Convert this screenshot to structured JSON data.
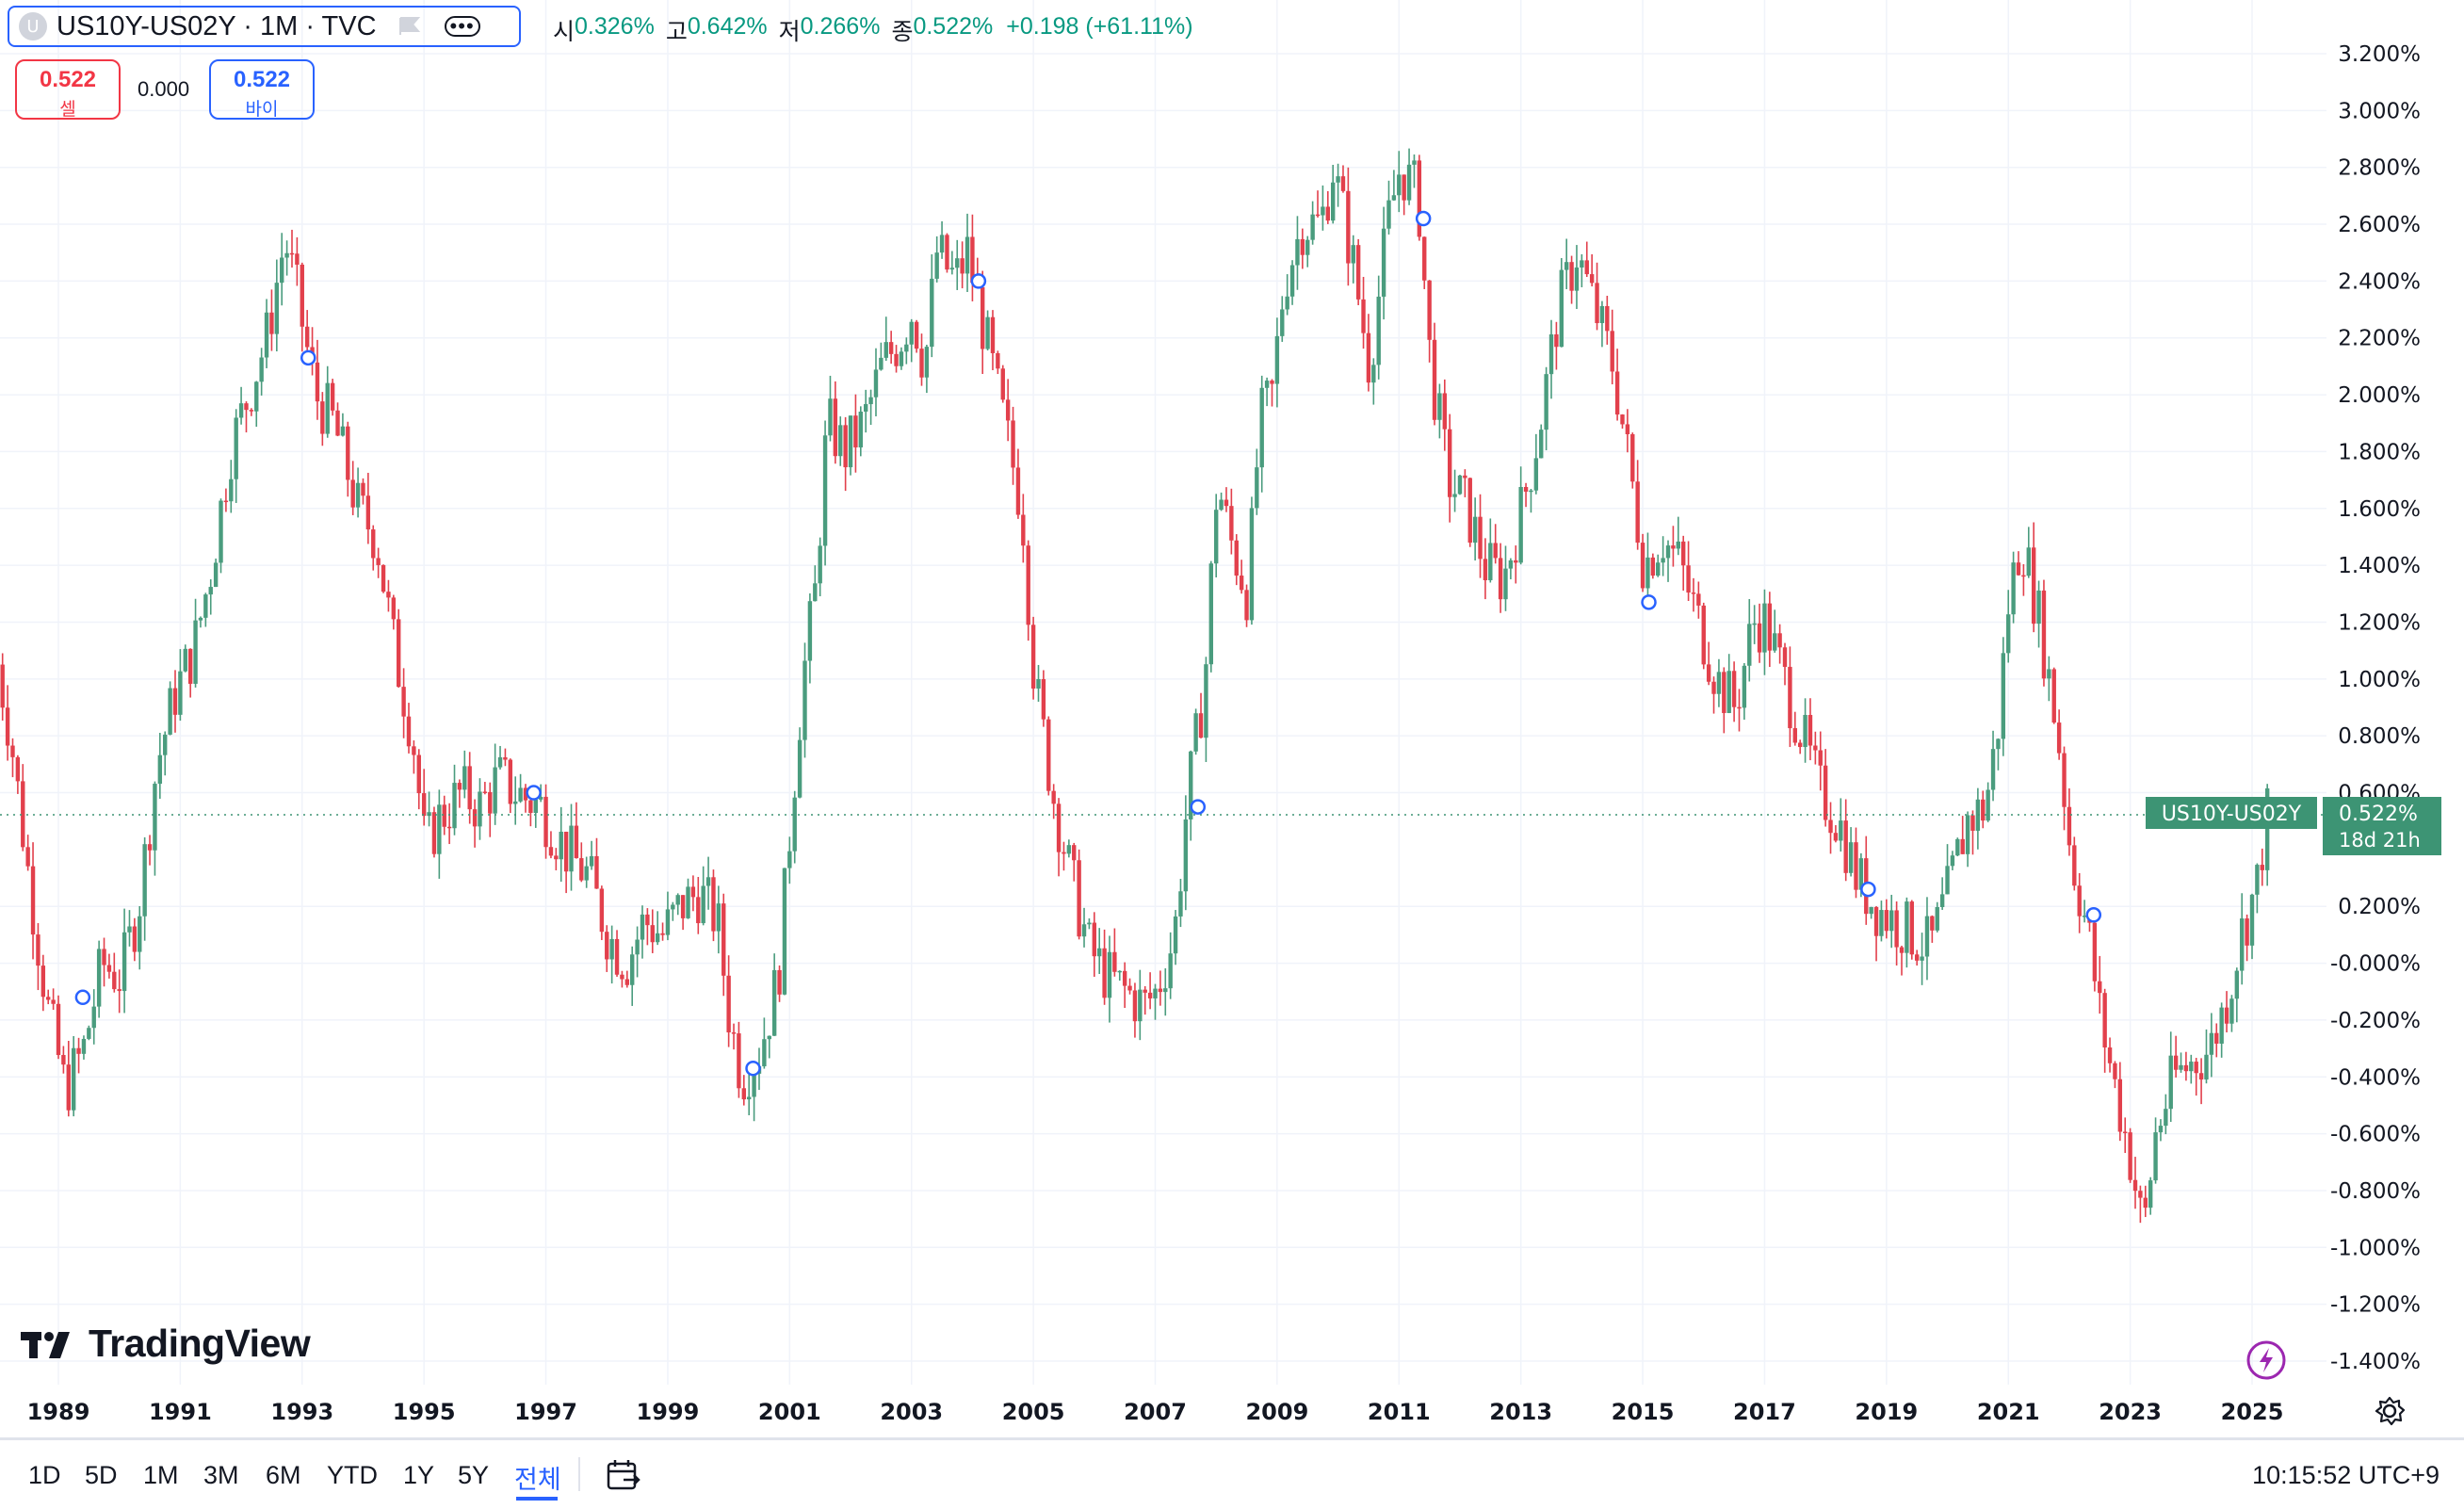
{
  "header": {
    "symbol_logo": "U",
    "symbol_title": "US10Y-US02Y · 1M · TVC",
    "ohlc": [
      {
        "key": "시",
        "value": "0.326%"
      },
      {
        "key": "고",
        "value": "0.642%"
      },
      {
        "key": "저",
        "value": "0.266%"
      },
      {
        "key": "종",
        "value": "0.522%"
      }
    ],
    "change": "+0.198 (+61.11%)"
  },
  "trade": {
    "sell_value": "0.522",
    "sell_label": "셀",
    "spread": "0.000",
    "buy_value": "0.522",
    "buy_label": "바이"
  },
  "price_tag": {
    "symbol": "US10Y-US02Y",
    "value": "0.522%",
    "countdown": "18d 21h"
  },
  "watermark": "TradingView",
  "bottom_bar": {
    "timeframes": [
      "1D",
      "5D",
      "1M",
      "3M",
      "6M",
      "YTD",
      "1Y",
      "5Y",
      "전체"
    ],
    "active_timeframe": "전체",
    "clock": "10:15:52 UTC+9"
  },
  "colors": {
    "up": "#4a9c7e",
    "down": "#e2404c",
    "accent": "#2962ff",
    "tag": "#3d9474"
  },
  "icons": [
    "symbol-logo-icon",
    "flag-icon",
    "more-icon",
    "tradingview-logo-icon",
    "lightning-icon",
    "settings-gear-icon",
    "date-range-icon"
  ],
  "chart_data": {
    "type": "candlestick",
    "title": "US10Y-US02Y · 1M · TVC",
    "y_axis_position": "right",
    "ylim": [
      -1.5,
      3.3
    ],
    "y_ticks": [
      "3.200%",
      "3.000%",
      "2.800%",
      "2.600%",
      "2.400%",
      "2.200%",
      "2.000%",
      "1.800%",
      "1.600%",
      "1.400%",
      "1.200%",
      "1.000%",
      "0.800%",
      "0.600%",
      "0.200%",
      "-0.000%",
      "-0.200%",
      "-0.400%",
      "-0.600%",
      "-0.800%",
      "-1.000%",
      "-1.200%",
      "-1.400%"
    ],
    "x_ticks": [
      "1989",
      "1991",
      "1993",
      "1995",
      "1997",
      "1999",
      "2001",
      "2003",
      "2005",
      "2007",
      "2009",
      "2011",
      "2013",
      "2015",
      "2017",
      "2019",
      "2021",
      "2023",
      "2025"
    ],
    "x_range": [
      1988.0,
      2026.0
    ],
    "grid": true,
    "last_price": 0.522,
    "path_points": [
      [
        1988.0,
        1.15
      ],
      [
        1988.3,
        0.8
      ],
      [
        1988.6,
        0.3
      ],
      [
        1988.9,
        -0.15
      ],
      [
        1989.2,
        -0.45
      ],
      [
        1989.5,
        -0.3
      ],
      [
        1989.8,
        0.0
      ],
      [
        1990.1,
        -0.05
      ],
      [
        1990.4,
        0.2
      ],
      [
        1990.7,
        0.7
      ],
      [
        1991.0,
        0.95
      ],
      [
        1991.3,
        1.1
      ],
      [
        1991.6,
        1.4
      ],
      [
        1991.9,
        1.8
      ],
      [
        1992.2,
        2.0
      ],
      [
        1992.5,
        2.2
      ],
      [
        1992.8,
        2.55
      ],
      [
        1993.0,
        2.35
      ],
      [
        1993.3,
        2.0
      ],
      [
        1993.6,
        1.9
      ],
      [
        1994.0,
        1.6
      ],
      [
        1994.3,
        1.5
      ],
      [
        1994.6,
        1.1
      ],
      [
        1994.9,
        0.8
      ],
      [
        1995.1,
        0.4
      ],
      [
        1995.3,
        0.5
      ],
      [
        1995.7,
        0.6
      ],
      [
        1996.0,
        0.55
      ],
      [
        1996.3,
        0.65
      ],
      [
        1996.6,
        0.6
      ],
      [
        1997.0,
        0.55
      ],
      [
        1997.4,
        0.4
      ],
      [
        1997.8,
        0.3
      ],
      [
        1998.1,
        0.1
      ],
      [
        1998.4,
        0.0
      ],
      [
        1998.7,
        0.15
      ],
      [
        1999.0,
        0.1
      ],
      [
        1999.3,
        0.2
      ],
      [
        1999.6,
        0.25
      ],
      [
        1999.9,
        0.15
      ],
      [
        2000.1,
        -0.2
      ],
      [
        2000.3,
        -0.4
      ],
      [
        2000.6,
        -0.3
      ],
      [
        2000.9,
        -0.05
      ],
      [
        2001.1,
        0.5
      ],
      [
        2001.3,
        1.0
      ],
      [
        2001.5,
        1.3
      ],
      [
        2001.7,
        1.9
      ],
      [
        2002.0,
        1.8
      ],
      [
        2002.3,
        1.9
      ],
      [
        2002.6,
        2.1
      ],
      [
        2002.9,
        2.2
      ],
      [
        2003.1,
        2.3
      ],
      [
        2003.3,
        2.1
      ],
      [
        2003.5,
        2.5
      ],
      [
        2003.8,
        2.4
      ],
      [
        2004.0,
        2.5
      ],
      [
        2004.3,
        2.2
      ],
      [
        2004.6,
        1.9
      ],
      [
        2004.9,
        1.6
      ],
      [
        2005.1,
        1.0
      ],
      [
        2005.4,
        0.6
      ],
      [
        2005.7,
        0.3
      ],
      [
        2006.0,
        0.05
      ],
      [
        2006.3,
        -0.05
      ],
      [
        2006.6,
        -0.1
      ],
      [
        2006.9,
        -0.15
      ],
      [
        2007.1,
        -0.1
      ],
      [
        2007.4,
        0.1
      ],
      [
        2007.6,
        0.55
      ],
      [
        2007.9,
        1.0
      ],
      [
        2008.1,
        1.7
      ],
      [
        2008.3,
        1.5
      ],
      [
        2008.6,
        1.3
      ],
      [
        2008.8,
        1.9
      ],
      [
        2009.0,
        2.0
      ],
      [
        2009.2,
        2.4
      ],
      [
        2009.5,
        2.6
      ],
      [
        2009.8,
        2.6
      ],
      [
        2010.0,
        2.8
      ],
      [
        2010.3,
        2.5
      ],
      [
        2010.6,
        2.1
      ],
      [
        2010.9,
        2.6
      ],
      [
        2011.1,
        2.8
      ],
      [
        2011.4,
        2.7
      ],
      [
        2011.6,
        2.1
      ],
      [
        2011.9,
        1.7
      ],
      [
        2012.2,
        1.6
      ],
      [
        2012.5,
        1.4
      ],
      [
        2012.8,
        1.35
      ],
      [
        2013.1,
        1.6
      ],
      [
        2013.4,
        1.9
      ],
      [
        2013.7,
        2.3
      ],
      [
        2014.0,
        2.5
      ],
      [
        2014.3,
        2.3
      ],
      [
        2014.6,
        2.1
      ],
      [
        2014.9,
        1.7
      ],
      [
        2015.1,
        1.4
      ],
      [
        2015.4,
        1.5
      ],
      [
        2015.7,
        1.4
      ],
      [
        2016.0,
        1.2
      ],
      [
        2016.3,
        1.0
      ],
      [
        2016.6,
        0.9
      ],
      [
        2016.9,
        1.2
      ],
      [
        2017.1,
        1.2
      ],
      [
        2017.4,
        1.0
      ],
      [
        2017.7,
        0.8
      ],
      [
        2018.0,
        0.6
      ],
      [
        2018.3,
        0.5
      ],
      [
        2018.6,
        0.3
      ],
      [
        2018.9,
        0.2
      ],
      [
        2019.2,
        0.15
      ],
      [
        2019.5,
        0.1
      ],
      [
        2019.8,
        0.05
      ],
      [
        2020.1,
        0.25
      ],
      [
        2020.4,
        0.5
      ],
      [
        2020.7,
        0.55
      ],
      [
        2020.9,
        0.8
      ],
      [
        2021.1,
        1.3
      ],
      [
        2021.3,
        1.5
      ],
      [
        2021.6,
        1.2
      ],
      [
        2021.9,
        0.8
      ],
      [
        2022.1,
        0.4
      ],
      [
        2022.4,
        0.1
      ],
      [
        2022.6,
        -0.2
      ],
      [
        2022.9,
        -0.5
      ],
      [
        2023.1,
        -0.7
      ],
      [
        2023.3,
        -0.95
      ],
      [
        2023.5,
        -0.6
      ],
      [
        2023.8,
        -0.4
      ],
      [
        2024.1,
        -0.35
      ],
      [
        2024.4,
        -0.3
      ],
      [
        2024.7,
        -0.1
      ],
      [
        2024.9,
        0.1
      ],
      [
        2025.2,
        0.3
      ],
      [
        2025.3,
        0.522
      ]
    ],
    "markers": [
      {
        "x": 1989.4,
        "y": -0.12
      },
      {
        "x": 1993.1,
        "y": 2.13
      },
      {
        "x": 1996.8,
        "y": 0.6
      },
      {
        "x": 2000.4,
        "y": -0.37
      },
      {
        "x": 2004.1,
        "y": 2.4
      },
      {
        "x": 2007.7,
        "y": 0.55
      },
      {
        "x": 2011.4,
        "y": 2.62
      },
      {
        "x": 2015.1,
        "y": 1.27
      },
      {
        "x": 2018.7,
        "y": 0.26
      },
      {
        "x": 2022.4,
        "y": 0.17
      }
    ]
  }
}
